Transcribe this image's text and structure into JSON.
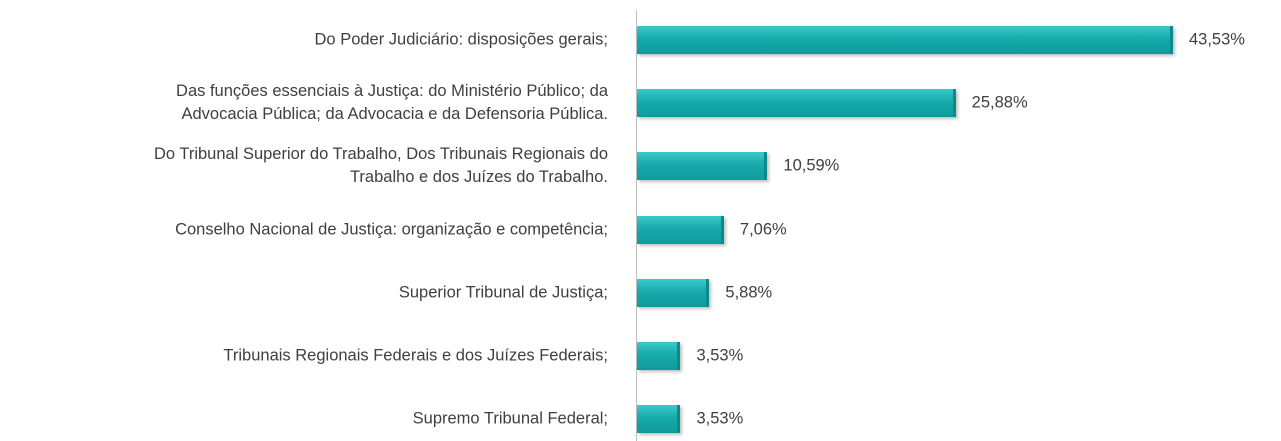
{
  "chart_data": {
    "type": "bar",
    "orientation": "horizontal",
    "categories": [
      "Do Poder Judiciário: disposições gerais;",
      "Das funções essenciais à Justiça: do Ministério Público; da\nAdvocacia Pública; da Advocacia e da Defensoria Pública.",
      "Do Tribunal Superior do Trabalho, Dos Tribunais Regionais do\nTrabalho e dos Juízes do Trabalho.",
      "Conselho Nacional de Justiça: organização e competência;",
      "Superior Tribunal de Justiça;",
      "Tribunais Regionais Federais e dos Juízes Federais;",
      "Supremo Tribunal Federal;"
    ],
    "values": [
      43.53,
      25.88,
      10.59,
      7.06,
      5.88,
      3.53,
      3.53
    ],
    "value_labels": [
      "43,53%",
      "25,88%",
      "10,59%",
      "7,06%",
      "5,88%",
      "3,53%",
      "3,53%"
    ],
    "color": "#17aeae"
  }
}
